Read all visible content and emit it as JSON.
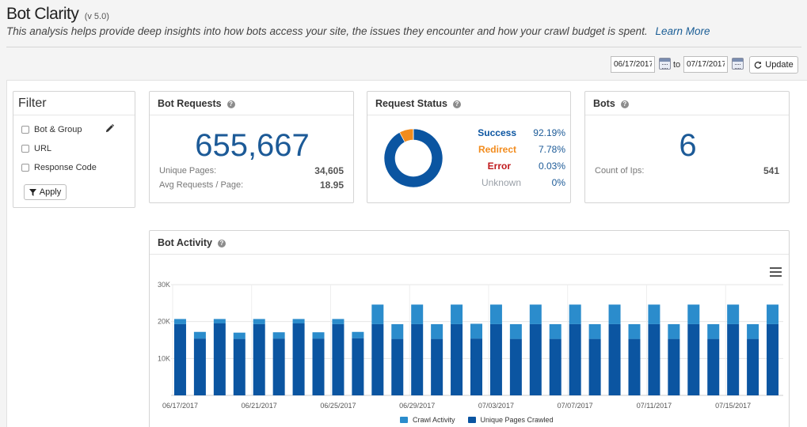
{
  "header": {
    "title": "Bot Clarity",
    "version": "(v 5.0)",
    "subtitle": "This analysis helps provide deep insights into how bots access your site, the issues they encounter and how your crawl budget is spent.",
    "learn_more": "Learn More"
  },
  "datebar": {
    "from": "06/17/2017",
    "to_label": "to",
    "to": "07/17/2017",
    "update_label": "Update"
  },
  "filter": {
    "title": "Filter",
    "items": [
      {
        "label": "Bot & Group",
        "checked": false
      },
      {
        "label": "URL",
        "checked": false
      },
      {
        "label": "Response Code",
        "checked": false
      }
    ],
    "apply_label": "Apply"
  },
  "bot_requests": {
    "title": "Bot Requests",
    "total": "655,667",
    "unique_pages_label": "Unique Pages:",
    "unique_pages_value": "34,605",
    "avg_label": "Avg Requests / Page:",
    "avg_value": "18.95"
  },
  "request_status": {
    "title": "Request Status",
    "rows": [
      {
        "label": "Success",
        "pct": "92.19%",
        "value": 92.19,
        "color": "#0b55a1"
      },
      {
        "label": "Redirect",
        "pct": "7.78%",
        "value": 7.78,
        "color": "#f28c1e"
      },
      {
        "label": "Error",
        "pct": "0.03%",
        "value": 0.03,
        "color": "#c0191c"
      },
      {
        "label": "Unknown",
        "pct": "0%",
        "value": 0,
        "color": "#9aa0a8"
      }
    ]
  },
  "bots": {
    "title": "Bots",
    "count": "6",
    "ips_label": "Count of Ips:",
    "ips_value": "541"
  },
  "bot_activity": {
    "title": "Bot Activity",
    "colors": {
      "crawl": "#2b8ccc",
      "unique": "#0b55a1"
    }
  },
  "chart_data": {
    "type": "bar",
    "stacked": true,
    "title": "",
    "xlabel": "",
    "ylabel": "",
    "ylim": [
      0,
      30000
    ],
    "yticks": [
      {
        "v": 10000,
        "label": "10K"
      },
      {
        "v": 20000,
        "label": "20K"
      },
      {
        "v": 30000,
        "label": "30K"
      }
    ],
    "grid": true,
    "legend": "bottom-center",
    "categories": [
      "06/17/2017",
      "06/18/2017",
      "06/19/2017",
      "06/20/2017",
      "06/21/2017",
      "06/22/2017",
      "06/23/2017",
      "06/24/2017",
      "06/25/2017",
      "06/26/2017",
      "06/27/2017",
      "06/28/2017",
      "06/29/2017",
      "06/30/2017",
      "07/01/2017",
      "07/02/2017",
      "07/03/2017",
      "07/04/2017",
      "07/05/2017",
      "07/06/2017",
      "07/07/2017",
      "07/08/2017",
      "07/09/2017",
      "07/10/2017",
      "07/11/2017",
      "07/12/2017",
      "07/13/2017",
      "07/14/2017",
      "07/15/2017",
      "07/16/2017",
      "07/17/2017"
    ],
    "x_labels": [
      "06/17/2017",
      "06/21/2017",
      "06/25/2017",
      "06/29/2017",
      "07/03/2017",
      "07/07/2017",
      "07/11/2017",
      "07/15/2017"
    ],
    "series": [
      {
        "name": "Unique Pages Crawled",
        "values": [
          19300,
          15400,
          19500,
          15300,
          19300,
          15400,
          19500,
          15400,
          19300,
          15500,
          19300,
          15300,
          19300,
          15300,
          19300,
          15400,
          19300,
          15300,
          19300,
          15300,
          19300,
          15300,
          19300,
          15300,
          19300,
          15300,
          19300,
          15300,
          19300,
          15300,
          19300
        ]
      },
      {
        "name": "Crawl Activity",
        "values": [
          1400,
          1800,
          1200,
          1700,
          1400,
          1700,
          1200,
          1700,
          1400,
          1700,
          5300,
          4000,
          5300,
          4000,
          5300,
          4000,
          5300,
          4000,
          5300,
          4000,
          5300,
          4000,
          5300,
          4000,
          5300,
          4000,
          5300,
          4000,
          5300,
          4000,
          5300
        ]
      }
    ]
  }
}
